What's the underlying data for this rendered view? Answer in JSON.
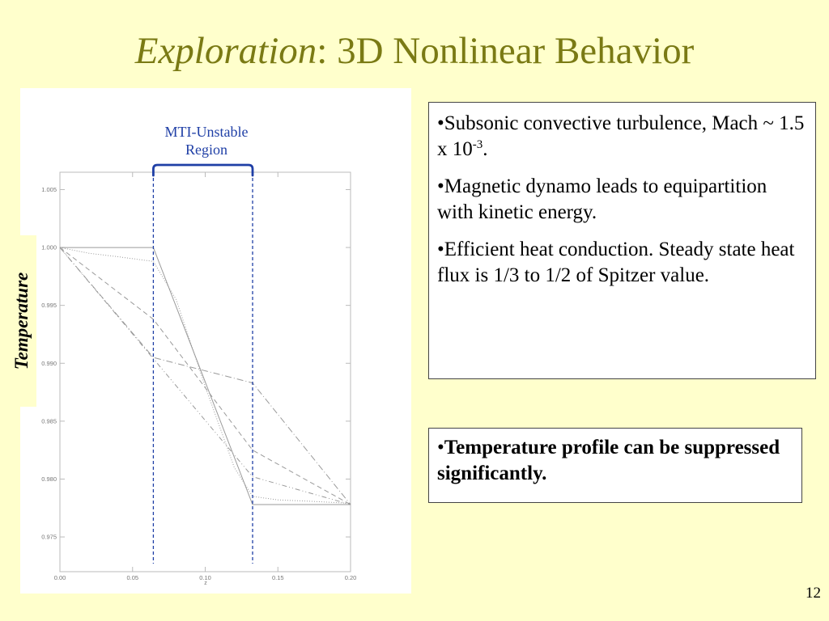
{
  "title": {
    "italic_part": "Exploration",
    "rest": ": 3D Nonlinear Behavior"
  },
  "temperature_label": "Temperature",
  "annotation": {
    "line1": "MTI-Unstable",
    "line2": "Region"
  },
  "colors": {
    "background": "#ffffcc",
    "title": "#7a7a14",
    "annotation": "#1f3fa6",
    "curves": "#9a9a9a"
  },
  "bullets": {
    "b1_prefix": "•Subsonic convective turbulence, Mach ~ 1.5 x 10",
    "b1_sup": "-3",
    "b1_suffix": ".",
    "b2": "•Magnetic dynamo leads to equipartition with kinetic energy.",
    "b3": "•Efficient heat conduction. Steady state heat flux is 1/3 to 1/2 of Spitzer value.",
    "b4": "Temperature profile can be suppressed significantly.",
    "b4_bullet": "•"
  },
  "page_number": "12",
  "chart_data": {
    "type": "line",
    "xlabel": "z",
    "ylabel": "Temperature",
    "xlim": [
      0.0,
      0.2
    ],
    "ylim": [
      0.972,
      1.0065
    ],
    "xticks": [
      "0.00",
      "0.05",
      "0.10",
      "0.15",
      "0.20"
    ],
    "xtick_values": [
      0.0,
      0.05,
      0.1,
      0.15,
      0.2
    ],
    "yticks": [
      "0.975",
      "0.980",
      "0.985",
      "0.990",
      "0.995",
      "1.000",
      "1.005"
    ],
    "ytick_values": [
      0.975,
      0.98,
      0.985,
      0.99,
      0.995,
      1.0,
      1.005
    ],
    "region": {
      "x_start": 0.0643,
      "x_end": 0.1326
    },
    "series": [
      {
        "style": "solid",
        "points": [
          [
            0.0,
            1.0
          ],
          [
            0.0643,
            1.0
          ],
          [
            0.1326,
            0.9778
          ],
          [
            0.2,
            0.9778
          ]
        ]
      },
      {
        "style": "dotted",
        "points": [
          [
            0.0,
            1.0
          ],
          [
            0.02,
            0.9995
          ],
          [
            0.04,
            0.9992
          ],
          [
            0.0643,
            0.9988
          ],
          [
            0.08,
            0.9955
          ],
          [
            0.1,
            0.988
          ],
          [
            0.12,
            0.981
          ],
          [
            0.1326,
            0.9785
          ],
          [
            0.15,
            0.9782
          ],
          [
            0.17,
            0.9781
          ],
          [
            0.2,
            0.9779
          ]
        ]
      },
      {
        "style": "dashed",
        "points": [
          [
            0.0,
            1.0
          ],
          [
            0.0643,
            0.9938
          ],
          [
            0.1326,
            0.9825
          ],
          [
            0.2,
            0.9778
          ]
        ]
      },
      {
        "style": "dashdot",
        "points": [
          [
            0.0,
            1.0
          ],
          [
            0.0643,
            0.9905
          ],
          [
            0.1326,
            0.9883
          ],
          [
            0.2,
            0.9778
          ]
        ]
      },
      {
        "style": "dashdotdot",
        "points": [
          [
            0.0,
            1.0
          ],
          [
            0.1326,
            0.9802
          ],
          [
            0.2,
            0.9778
          ]
        ]
      }
    ]
  }
}
